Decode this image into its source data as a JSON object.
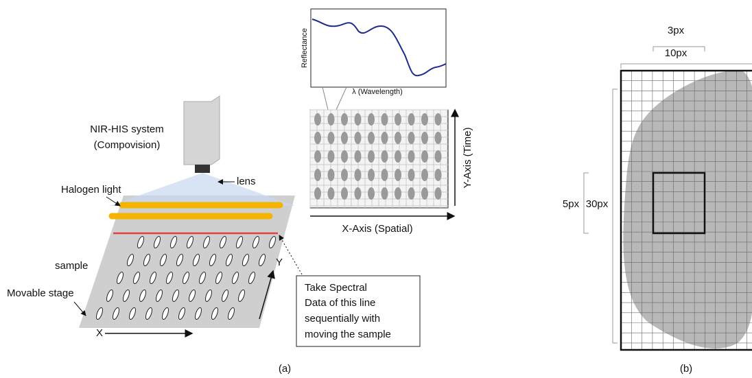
{
  "panel_a": {
    "spectrum": {
      "y_label": "Reflectance",
      "x_label": "λ (Wavelength)"
    },
    "camera": {
      "title_lines": [
        "NIR-HIS system",
        "(Compovision)"
      ],
      "lens": "lens"
    },
    "light": "Halogen light",
    "image": {
      "y_axis": "Y-Axis (Time)",
      "x_axis": "X-Axis (Spatial)"
    },
    "stage": {
      "sample": "sample",
      "movable_stage": "Movable stage",
      "y": "Y",
      "x": "X"
    },
    "note_lines": [
      "Take Spectral",
      "Data of this line",
      "sequentially with",
      "moving the sample"
    ],
    "caption": "(a)"
  },
  "panel_b": {
    "top_outer": "3px",
    "top_inner": "10px",
    "left_outer": "5px",
    "left_inner": "30px",
    "caption": "(b)"
  }
}
